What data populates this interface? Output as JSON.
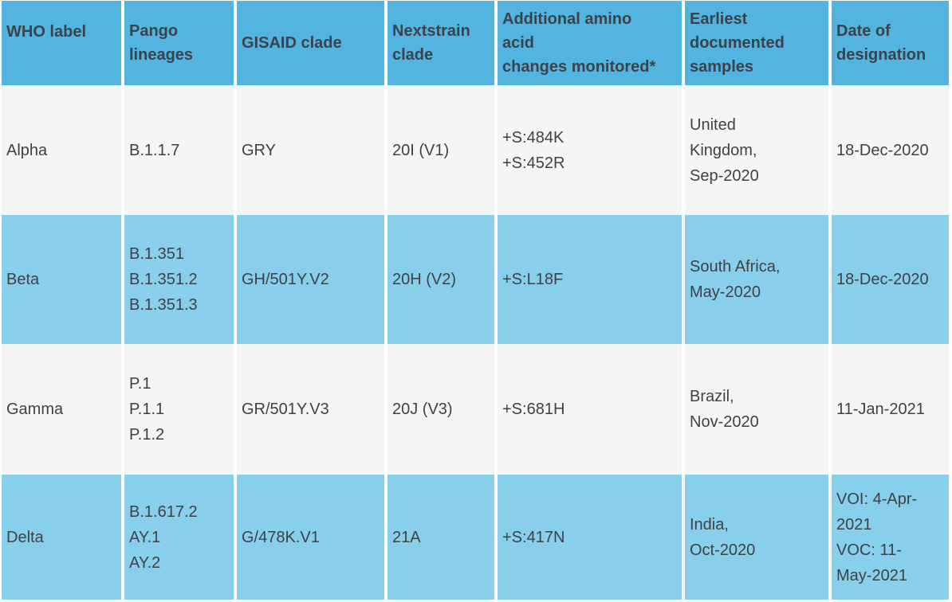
{
  "colors": {
    "header_background": "#53b4e0",
    "row_blue_background": "#87cfeb",
    "row_gray_background": "#f4f5f5",
    "header_text": "#3a434b",
    "body_text": "#3f4245",
    "divider": "#ffffff"
  },
  "table": {
    "headers": [
      {
        "label": "WHO label"
      },
      {
        "label": "Pango\nlineages"
      },
      {
        "label": "GISAID clade"
      },
      {
        "label": "Nextstrain\nclade"
      },
      {
        "label": "Additional amino\nacid\nchanges monitored*"
      },
      {
        "label": "Earliest\ndocumented\nsamples"
      },
      {
        "label": "Date of\ndesignation"
      }
    ],
    "rows": [
      {
        "name": "alpha",
        "cells": [
          "Alpha",
          "B.1.1.7",
          "GRY",
          "20I (V1)",
          "+S:484K\n+S:452R",
          "United\nKingdom,\nSep-2020",
          "18-Dec-2020"
        ]
      },
      {
        "name": "beta",
        "cells": [
          "Beta",
          "B.1.351\nB.1.351.2\nB.1.351.3",
          "GH/501Y.V2",
          "20H (V2)",
          "+S:L18F",
          "South Africa,\nMay-2020",
          "18-Dec-2020"
        ]
      },
      {
        "name": "gamma",
        "cells": [
          "Gamma",
          "P.1\nP.1.1\nP.1.2",
          "GR/501Y.V3",
          "20J (V3)",
          "+S:681H",
          "Brazil,\nNov-2020",
          "11-Jan-2021"
        ]
      },
      {
        "name": "delta",
        "cells": [
          "Delta",
          "B.1.617.2\nAY.1\nAY.2",
          "G/478K.V1",
          "21A",
          "+S:417N",
          "India,\nOct-2020",
          "VOI: 4-Apr-\n2021\nVOC: 11-\nMay-2021"
        ]
      }
    ]
  }
}
